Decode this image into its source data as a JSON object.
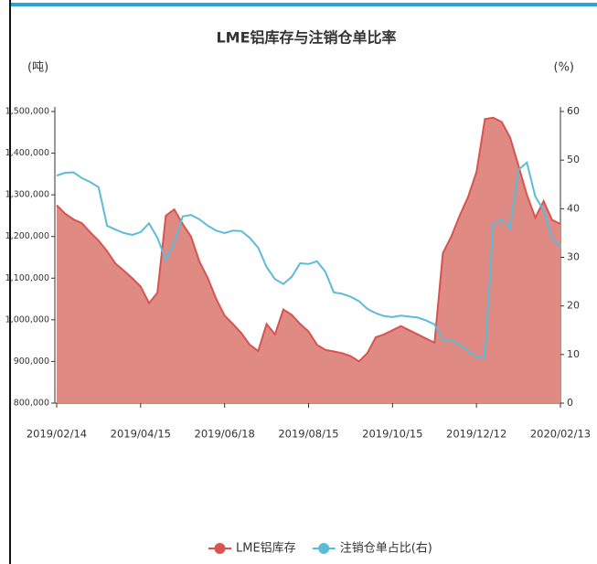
{
  "chart_data": {
    "type": "area-line",
    "title": "LME铝库存与注销仓单比率",
    "y_label": "(吨)",
    "y2_label": "(%)",
    "categories": [
      "2019/02/14",
      null,
      null,
      null,
      null,
      null,
      null,
      null,
      null,
      null,
      "2019/04/15",
      null,
      null,
      null,
      null,
      null,
      null,
      null,
      null,
      null,
      "2019/06/18",
      null,
      null,
      null,
      null,
      null,
      null,
      null,
      null,
      null,
      "2019/08/15",
      null,
      null,
      null,
      null,
      null,
      null,
      null,
      null,
      null,
      "2019/10/15",
      null,
      null,
      null,
      null,
      null,
      null,
      null,
      null,
      null,
      "2019/12/12",
      null,
      null,
      null,
      null,
      null,
      null,
      null,
      null,
      null,
      "2020/02/13"
    ],
    "series": [
      {
        "name": "LME铝库存",
        "color": "#d9534f",
        "fill": "#e08a84",
        "axis": "y",
        "values": [
          1275000,
          1255000,
          1241000,
          1232000,
          1210000,
          1190000,
          1165000,
          1135000,
          1118000,
          1100000,
          1080000,
          1040000,
          1065000,
          1250000,
          1265000,
          1230000,
          1200000,
          1140000,
          1100000,
          1050000,
          1010000,
          990000,
          968000,
          940000,
          925000,
          990000,
          965000,
          1025000,
          1012000,
          990000,
          972000,
          940000,
          928000,
          924000,
          920000,
          913000,
          900000,
          920000,
          958000,
          965000,
          975000,
          985000,
          975000,
          965000,
          955000,
          945000,
          1160000,
          1200000,
          1250000,
          1295000,
          1355000,
          1482000,
          1485000,
          1475000,
          1438000,
          1370000,
          1300000,
          1245000,
          1285000,
          1240000,
          1230000
        ]
      },
      {
        "name": "注销仓单占比(右)",
        "color": "#5bbcd9",
        "axis": "y2",
        "values": [
          46.8,
          47.4,
          47.5,
          46.3,
          45.5,
          44.4,
          36.5,
          35.7,
          35.0,
          34.6,
          35.2,
          37.0,
          34.0,
          29.5,
          33.0,
          38.4,
          38.7,
          37.8,
          36.5,
          35.5,
          35.0,
          35.5,
          35.4,
          34.0,
          32.0,
          28.0,
          25.5,
          24.5,
          26.0,
          28.8,
          28.6,
          29.2,
          27.0,
          22.8,
          22.5,
          21.9,
          21.0,
          19.4,
          18.5,
          17.9,
          17.7,
          18.0,
          17.8,
          17.6,
          17.0,
          16.2,
          13.0,
          13.0,
          12.0,
          10.8,
          9.5,
          9.5,
          36.9,
          37.7,
          36.0,
          48.0,
          49.5,
          42.5,
          39.7,
          34.0,
          32.2
        ]
      }
    ],
    "ylim": [
      800000,
      1500000
    ],
    "yticks": [
      {
        "value": 800000,
        "label": "800,000"
      },
      {
        "value": 900000,
        "label": "900,000"
      },
      {
        "value": 1000000,
        "label": "1,000,000"
      },
      {
        "value": 1100000,
        "label": "1,100,000"
      },
      {
        "value": 1200000,
        "label": "1,200,000"
      },
      {
        "value": 1300000,
        "label": "1,300,000"
      },
      {
        "value": 1400000,
        "label": "1,400,000"
      },
      {
        "value": 1500000,
        "label": "1,500,000"
      }
    ],
    "y2lim": [
      0,
      60
    ],
    "y2ticks": [
      0,
      10,
      20,
      30,
      40,
      50,
      60
    ],
    "legend": "bottom"
  }
}
